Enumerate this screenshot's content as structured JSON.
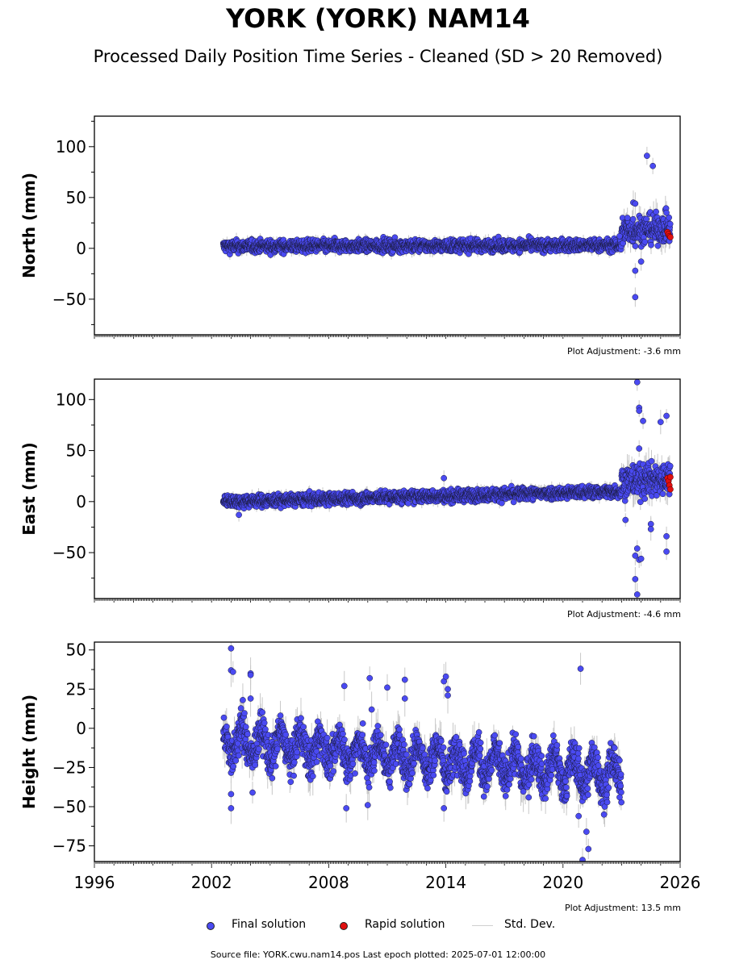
{
  "title": "YORK (YORK) NAM14",
  "subtitle": "Processed Daily Position Time Series - Cleaned (SD > 20 Removed)",
  "legend": {
    "final": "Final solution",
    "rapid": "Rapid solution",
    "std": "Std. Dev."
  },
  "footer": "Source file: YORK.cwu.nam14.pos  Last epoch plotted: 2025-07-01 12:00:00",
  "colors": {
    "final": "#4a4af2",
    "rapid": "#e01010",
    "std": "#c8c8c8",
    "edge": "#1a1a3a"
  },
  "chart_data": [
    {
      "type": "scatter",
      "ylabel": "North (mm)",
      "adjustment": "Plot Adjustment: -3.6 mm",
      "xlim": [
        1996,
        2026
      ],
      "ylim": [
        -85,
        130
      ],
      "yticks": [
        -50,
        0,
        50,
        100
      ],
      "xtick_labels_shown": false,
      "series": [
        {
          "name": "Final solution",
          "segments": [
            {
              "x": [
                2002.6,
                2023.0
              ],
              "center": [
                2.0,
                3.0
              ],
              "scatter": 3.0
            },
            {
              "x": [
                2023.0,
                2025.5
              ],
              "center": [
                17.0,
                20.0
              ],
              "scatter": 7.0
            }
          ],
          "outliers": [
            [
              2024.3,
              91
            ],
            [
              2024.6,
              81
            ],
            [
              2023.6,
              45
            ],
            [
              2023.7,
              44
            ],
            [
              2023.7,
              -22
            ],
            [
              2023.7,
              -48
            ],
            [
              2024.0,
              -13
            ],
            [
              2025.3,
              35
            ],
            [
              2023.3,
              30
            ],
            [
              2022.9,
              12
            ]
          ]
        },
        {
          "name": "Rapid solution",
          "points": [
            [
              2025.35,
              16
            ],
            [
              2025.4,
              14
            ],
            [
              2025.45,
              12
            ],
            [
              2025.5,
              11
            ]
          ]
        }
      ]
    },
    {
      "type": "scatter",
      "ylabel": "East (mm)",
      "adjustment": "Plot Adjustment: -4.6 mm",
      "xlim": [
        1996,
        2026
      ],
      "ylim": [
        -95,
        120
      ],
      "yticks": [
        -50,
        0,
        50,
        100
      ],
      "xtick_labels_shown": false,
      "series": [
        {
          "name": "Final solution",
          "segments": [
            {
              "x": [
                2002.6,
                2023.0
              ],
              "center": [
                0.0,
                10.0
              ],
              "scatter": 3.0
            },
            {
              "x": [
                2023.0,
                2025.5
              ],
              "center": [
                20.0,
                22.0
              ],
              "scatter": 8.0
            }
          ],
          "outliers": [
            [
              2023.8,
              117
            ],
            [
              2023.9,
              92
            ],
            [
              2023.9,
              89
            ],
            [
              2024.1,
              79
            ],
            [
              2025.0,
              78
            ],
            [
              2025.3,
              84
            ],
            [
              2023.9,
              52
            ],
            [
              2024.5,
              -22
            ],
            [
              2024.5,
              -27
            ],
            [
              2025.3,
              -34
            ],
            [
              2025.3,
              -49
            ],
            [
              2023.8,
              -46
            ],
            [
              2023.7,
              -53
            ],
            [
              2023.9,
              -57
            ],
            [
              2024.0,
              -56
            ],
            [
              2023.7,
              -76
            ],
            [
              2023.8,
              -91
            ],
            [
              2023.2,
              -18
            ],
            [
              2003.4,
              -13
            ],
            [
              2013.9,
              23
            ]
          ]
        },
        {
          "name": "Rapid solution",
          "points": [
            [
              2025.35,
              23
            ],
            [
              2025.4,
              20
            ],
            [
              2025.45,
              16
            ],
            [
              2025.5,
              12
            ],
            [
              2025.5,
              24
            ]
          ]
        }
      ]
    },
    {
      "type": "scatter",
      "ylabel": "Height (mm)",
      "adjustment": "Plot Adjustment: 13.5 mm",
      "xlim": [
        1996,
        2026
      ],
      "ylim": [
        -85,
        55
      ],
      "yticks": [
        -75,
        -50,
        -25,
        0,
        25,
        50
      ],
      "xticks": [
        1996,
        2002,
        2008,
        2014,
        2020,
        2026
      ],
      "xtick_labels_shown": true,
      "series": [
        {
          "name": "Final solution",
          "segments": [
            {
              "x": [
                2002.6,
                2023.0
              ],
              "center": [
                -8.0,
                -30.0
              ],
              "seasonal_amplitude": 9.0,
              "scatter": 6.0
            }
          ],
          "outliers": [
            [
              2003.0,
              51
            ],
            [
              2003.0,
              37
            ],
            [
              2003.1,
              36
            ],
            [
              2004.0,
              35
            ],
            [
              2004.0,
              34
            ],
            [
              2004.0,
              19
            ],
            [
              2003.6,
              18
            ],
            [
              2008.8,
              27
            ],
            [
              2010.1,
              32
            ],
            [
              2011.0,
              26
            ],
            [
              2011.9,
              31
            ],
            [
              2011.9,
              19
            ],
            [
              2010.2,
              12
            ],
            [
              2013.9,
              30
            ],
            [
              2014.0,
              33
            ],
            [
              2014.1,
              25
            ],
            [
              2014.1,
              21
            ],
            [
              2020.9,
              38
            ],
            [
              2003.0,
              -42
            ],
            [
              2003.0,
              -51
            ],
            [
              2004.1,
              -41
            ],
            [
              2008.9,
              -51
            ],
            [
              2010.0,
              -49
            ],
            [
              2013.9,
              -51
            ],
            [
              2020.8,
              -56
            ],
            [
              2021.2,
              -66
            ],
            [
              2021.3,
              -77
            ],
            [
              2021.0,
              -84
            ],
            [
              2022.1,
              -55
            ],
            [
              2022.9,
              -44
            ]
          ]
        }
      ]
    }
  ]
}
